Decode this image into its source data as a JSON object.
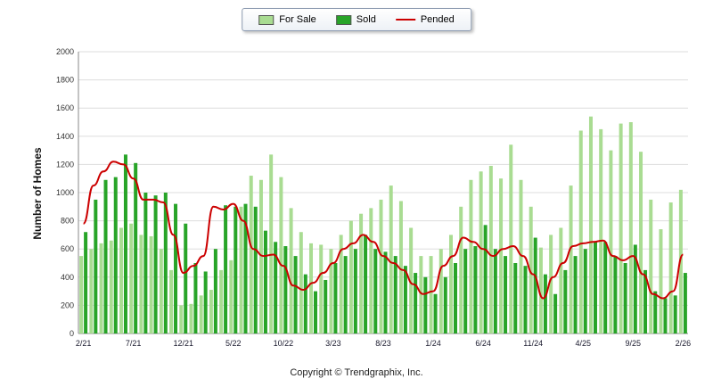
{
  "footer": {
    "copyright": "Copyright © Trendgraphix, Inc."
  },
  "colors": {
    "for_sale": "#a9dc92",
    "sold": "#28a428",
    "pended": "#cc0000",
    "grid": "#dddddd",
    "axis": "#888888"
  },
  "chart_data": {
    "type": "bar",
    "title": "",
    "xlabel": "",
    "ylabel": "Number of Homes",
    "ylim": [
      0,
      2000
    ],
    "ytick_step": 200,
    "yticks": [
      0,
      200,
      400,
      600,
      800,
      1000,
      1200,
      1400,
      1600,
      1800,
      2000
    ],
    "grid": true,
    "legend_position": "top-center",
    "x_tick_every": 5,
    "x_tick_labels": [
      "2/21",
      "7/21",
      "12/21",
      "5/22",
      "10/22",
      "3/23",
      "8/23",
      "1/24",
      "6/24",
      "11/24",
      "4/25",
      "9/25",
      "2/26"
    ],
    "x": [
      "2/21",
      "3/21",
      "4/21",
      "5/21",
      "6/21",
      "7/21",
      "8/21",
      "9/21",
      "10/21",
      "11/21",
      "12/21",
      "1/22",
      "2/22",
      "3/22",
      "4/22",
      "5/22",
      "6/22",
      "7/22",
      "8/22",
      "9/22",
      "10/22",
      "11/22",
      "12/22",
      "1/23",
      "2/23",
      "3/23",
      "4/23",
      "5/23",
      "6/23",
      "7/23",
      "8/23",
      "9/23",
      "10/23",
      "11/23",
      "12/23",
      "1/24",
      "2/24",
      "3/24",
      "4/24",
      "5/24",
      "6/24",
      "7/24",
      "8/24",
      "9/24",
      "10/24",
      "11/24",
      "12/24",
      "1/25",
      "2/25",
      "3/25",
      "4/25",
      "5/25",
      "6/25",
      "7/25",
      "8/25",
      "9/25",
      "10/25",
      "11/25",
      "12/25",
      "1/26",
      "2/26"
    ],
    "series": [
      {
        "name": "For Sale",
        "type": "bar",
        "color": "#a9dc92",
        "values": [
          550,
          600,
          640,
          660,
          750,
          780,
          700,
          690,
          600,
          450,
          200,
          210,
          270,
          310,
          450,
          520,
          900,
          1120,
          1090,
          1270,
          1110,
          890,
          720,
          640,
          630,
          600,
          700,
          800,
          850,
          890,
          950,
          1050,
          940,
          750,
          550,
          550,
          600,
          700,
          900,
          1090,
          1150,
          1190,
          1100,
          1340,
          1090,
          900,
          610,
          700,
          750,
          1050,
          1440,
          1540,
          1450,
          1300,
          1490,
          1500,
          1290,
          950,
          740,
          930,
          1020
        ]
      },
      {
        "name": "Sold",
        "type": "bar",
        "color": "#28a428",
        "values": [
          720,
          950,
          1090,
          1110,
          1270,
          1210,
          1000,
          980,
          1000,
          920,
          780,
          500,
          440,
          600,
          910,
          900,
          920,
          900,
          730,
          650,
          620,
          550,
          420,
          300,
          380,
          500,
          550,
          600,
          700,
          600,
          580,
          550,
          480,
          430,
          400,
          280,
          400,
          500,
          600,
          620,
          770,
          600,
          550,
          500,
          480,
          680,
          420,
          280,
          450,
          550,
          600,
          650,
          650,
          550,
          500,
          630,
          450,
          300,
          250,
          270,
          430
        ]
      },
      {
        "name": "Pended",
        "type": "line",
        "color": "#cc0000",
        "values": [
          780,
          1050,
          1150,
          1220,
          1200,
          1100,
          950,
          950,
          930,
          700,
          430,
          480,
          550,
          900,
          880,
          920,
          800,
          600,
          550,
          560,
          480,
          340,
          310,
          360,
          430,
          500,
          600,
          640,
          700,
          650,
          550,
          500,
          450,
          350,
          280,
          300,
          480,
          550,
          680,
          650,
          600,
          550,
          600,
          620,
          550,
          420,
          250,
          400,
          500,
          620,
          640,
          650,
          660,
          550,
          520,
          550,
          420,
          280,
          250,
          300,
          560
        ]
      }
    ]
  }
}
